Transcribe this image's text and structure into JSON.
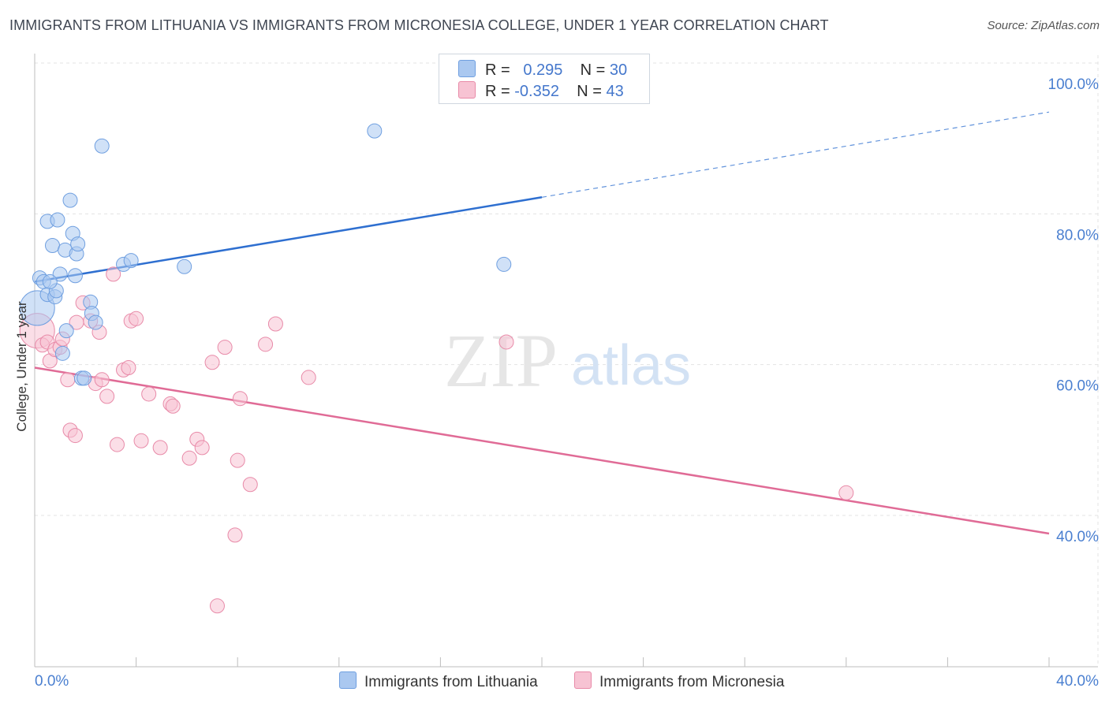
{
  "title": "IMMIGRANTS FROM LITHUANIA VS IMMIGRANTS FROM MICRONESIA COLLEGE, UNDER 1 YEAR CORRELATION CHART",
  "source": "Source: ZipAtlas.com",
  "watermark": {
    "zip": "ZIP",
    "atlas": "atlas"
  },
  "legend": {
    "r_label": "R =",
    "n_label": "N =",
    "rows": [
      {
        "r": "0.295",
        "n": "30",
        "color": "#aac8f0",
        "border": "#6f9fe0"
      },
      {
        "r": "-0.352",
        "n": "43",
        "color": "#f7c3d3",
        "border": "#e88aa8"
      }
    ]
  },
  "chart_data": {
    "type": "scatter",
    "title": "IMMIGRANTS FROM LITHUANIA VS IMMIGRANTS FROM MICRONESIA COLLEGE, UNDER 1 YEAR CORRELATION CHART",
    "xlabel": "",
    "ylabel": "College, Under 1 year",
    "xlim": [
      0,
      40
    ],
    "ylim": [
      20,
      102
    ],
    "x_tick_labels": [
      "0.0%",
      "40.0%"
    ],
    "y_ticks": [
      40,
      60,
      80,
      100
    ],
    "y_tick_labels": [
      "40.0%",
      "60.0%",
      "80.0%",
      "100.0%"
    ],
    "grid": true,
    "legend_position": "top-center",
    "series": [
      {
        "name": "Immigrants from Lithuania",
        "color": "#aac8f0",
        "stroke": "#6f9fe0",
        "trend_color": "#2e6fd0",
        "trend": {
          "x0": 0,
          "y0": 71.0,
          "x1": 20,
          "y1": 82.2,
          "x2": 40,
          "y2": 93.5
        },
        "points": [
          {
            "x": 0.1,
            "y": 67.5,
            "big": true
          },
          {
            "x": 0.2,
            "y": 71.5
          },
          {
            "x": 0.35,
            "y": 71.0
          },
          {
            "x": 0.5,
            "y": 79.0
          },
          {
            "x": 0.5,
            "y": 69.3
          },
          {
            "x": 0.7,
            "y": 75.8
          },
          {
            "x": 0.8,
            "y": 69.0
          },
          {
            "x": 0.85,
            "y": 69.8
          },
          {
            "x": 0.9,
            "y": 79.2
          },
          {
            "x": 1.0,
            "y": 72.0
          },
          {
            "x": 1.1,
            "y": 61.5
          },
          {
            "x": 1.2,
            "y": 75.2
          },
          {
            "x": 1.25,
            "y": 64.5
          },
          {
            "x": 1.4,
            "y": 81.8
          },
          {
            "x": 1.5,
            "y": 77.4
          },
          {
            "x": 1.6,
            "y": 71.8
          },
          {
            "x": 1.65,
            "y": 74.7
          },
          {
            "x": 1.7,
            "y": 76.0
          },
          {
            "x": 1.85,
            "y": 58.2
          },
          {
            "x": 1.95,
            "y": 58.2
          },
          {
            "x": 2.2,
            "y": 68.3
          },
          {
            "x": 2.25,
            "y": 66.8
          },
          {
            "x": 2.4,
            "y": 65.6
          },
          {
            "x": 2.65,
            "y": 89.0
          },
          {
            "x": 3.5,
            "y": 73.3
          },
          {
            "x": 3.8,
            "y": 73.8
          },
          {
            "x": 5.9,
            "y": 73.0
          },
          {
            "x": 13.4,
            "y": 91.0
          },
          {
            "x": 18.5,
            "y": 73.3
          },
          {
            "x": 0.6,
            "y": 71.0
          }
        ]
      },
      {
        "name": "Immigrants from Micronesia",
        "color": "#f7c3d3",
        "stroke": "#e88aa8",
        "trend_color": "#e06b96",
        "trend": {
          "x0": 0,
          "y0": 59.6,
          "x1": 40,
          "y1": 37.6
        },
        "points": [
          {
            "x": 0.1,
            "y": 64.5,
            "big": true
          },
          {
            "x": 0.3,
            "y": 62.6
          },
          {
            "x": 0.5,
            "y": 63.0
          },
          {
            "x": 0.6,
            "y": 60.5
          },
          {
            "x": 0.8,
            "y": 62.0
          },
          {
            "x": 1.0,
            "y": 62.3
          },
          {
            "x": 1.1,
            "y": 63.4
          },
          {
            "x": 1.3,
            "y": 58.0
          },
          {
            "x": 1.4,
            "y": 51.3
          },
          {
            "x": 1.6,
            "y": 50.6
          },
          {
            "x": 1.65,
            "y": 65.6
          },
          {
            "x": 1.9,
            "y": 68.2
          },
          {
            "x": 2.2,
            "y": 65.8
          },
          {
            "x": 2.4,
            "y": 57.5
          },
          {
            "x": 2.55,
            "y": 64.3
          },
          {
            "x": 2.65,
            "y": 58.0
          },
          {
            "x": 2.85,
            "y": 55.8
          },
          {
            "x": 3.1,
            "y": 72.0
          },
          {
            "x": 3.25,
            "y": 49.4
          },
          {
            "x": 3.5,
            "y": 59.3
          },
          {
            "x": 3.7,
            "y": 59.6
          },
          {
            "x": 3.8,
            "y": 65.8
          },
          {
            "x": 4.0,
            "y": 66.1
          },
          {
            "x": 4.2,
            "y": 49.9
          },
          {
            "x": 4.5,
            "y": 56.1
          },
          {
            "x": 4.95,
            "y": 49.0
          },
          {
            "x": 5.35,
            "y": 54.8
          },
          {
            "x": 5.45,
            "y": 54.5
          },
          {
            "x": 6.1,
            "y": 47.6
          },
          {
            "x": 6.4,
            "y": 50.1
          },
          {
            "x": 6.6,
            "y": 49.0
          },
          {
            "x": 7.0,
            "y": 60.3
          },
          {
            "x": 7.2,
            "y": 28.0
          },
          {
            "x": 7.5,
            "y": 62.3
          },
          {
            "x": 7.9,
            "y": 37.4
          },
          {
            "x": 8.0,
            "y": 47.3
          },
          {
            "x": 8.1,
            "y": 55.5
          },
          {
            "x": 8.5,
            "y": 44.1
          },
          {
            "x": 9.1,
            "y": 62.7
          },
          {
            "x": 9.5,
            "y": 65.4
          },
          {
            "x": 10.8,
            "y": 58.3
          },
          {
            "x": 18.6,
            "y": 63.0
          },
          {
            "x": 32.0,
            "y": 43.0
          }
        ]
      }
    ]
  }
}
